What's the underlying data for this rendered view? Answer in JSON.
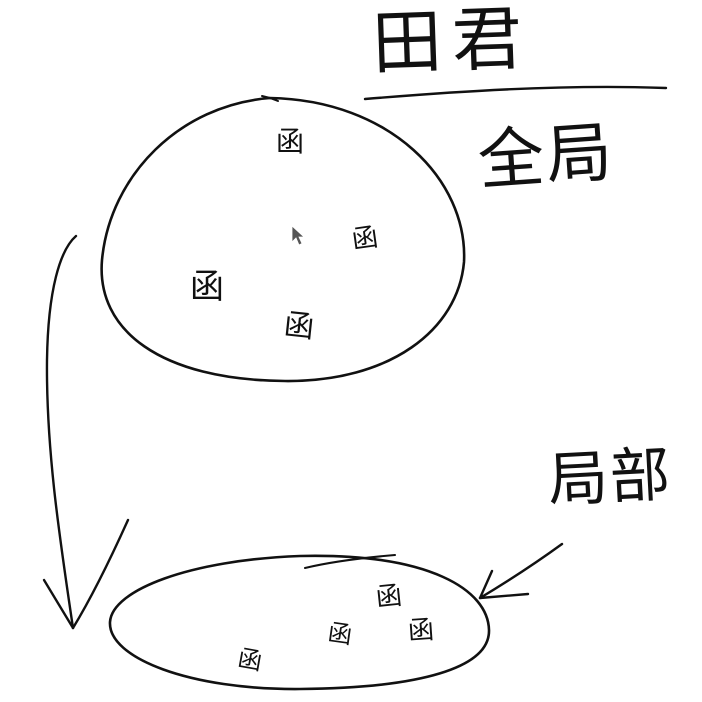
{
  "title": "田君",
  "labels": {
    "global": "全局",
    "local": "局部"
  },
  "top_region": {
    "name": "global-space",
    "particles": [
      "函",
      "函",
      "函",
      "函"
    ]
  },
  "bottom_region": {
    "name": "local-space",
    "particles": [
      "函",
      "函",
      "函",
      "函"
    ]
  },
  "cursor_icon": "pointer-arrow-icon",
  "colors": {
    "ink": "#111111",
    "background": "#ffffff",
    "cursor": "#555555"
  }
}
